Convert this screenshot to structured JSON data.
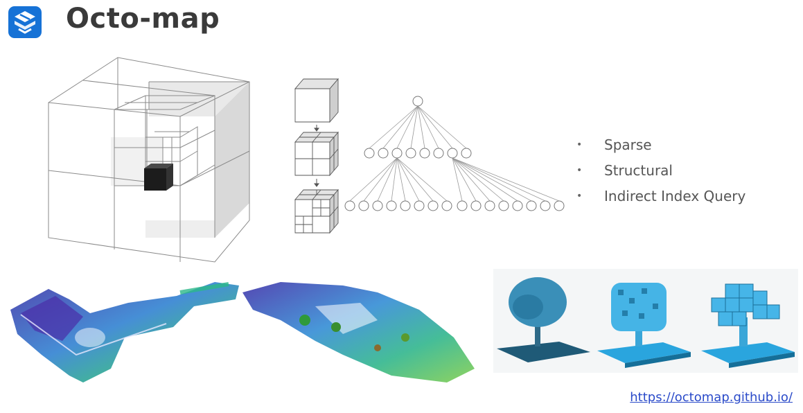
{
  "slide": {
    "title": "Octo-map",
    "bullets": [
      "Sparse",
      "Structural",
      "Indirect Index Query"
    ],
    "link": "https://octomap.github.io/",
    "bullet_glyph": "•"
  },
  "colors": {
    "logo_blue": "#1672d6",
    "title": "#3a3a3a",
    "link": "#2a4ac9",
    "tree_voxel": "#3ea6d8"
  },
  "icons": {
    "logo": "brand-logo-icon",
    "arrow": "down-arrow-icon"
  }
}
